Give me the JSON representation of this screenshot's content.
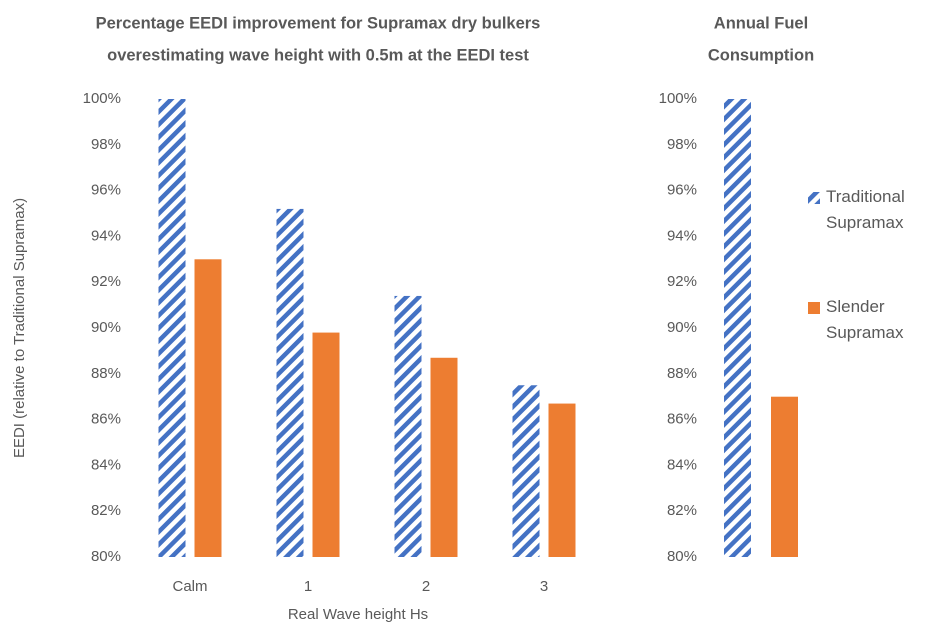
{
  "chart_data": [
    {
      "type": "bar",
      "title": [
        "Percentage EEDI improvement for Supramax dry bulkers",
        "overestimating wave height with 0.5m at the EEDI test"
      ],
      "x_label": "Real Wave height Hs",
      "y_label": "EEDI (relative to Traditional Supramax)",
      "categories": [
        "Calm",
        "1",
        "2",
        "3"
      ],
      "series": [
        {
          "color": "#4472c4",
          "hatch": true,
          "values": [
            100,
            95.2,
            91.4,
            87.5
          ]
        },
        {
          "color": "#ed7d31",
          "hatch": false,
          "values": [
            93.0,
            89.8,
            88.7,
            86.7
          ]
        }
      ],
      "ylim": [
        80,
        100
      ],
      "yticks": [
        {
          "value": 80,
          "label": "80%"
        },
        {
          "value": 82,
          "label": "82%"
        },
        {
          "value": 84,
          "label": "84%"
        },
        {
          "value": 86,
          "label": "86%"
        },
        {
          "value": 88,
          "label": "88%"
        },
        {
          "value": 90,
          "label": "90%"
        },
        {
          "value": 92,
          "label": "92%"
        },
        {
          "value": 94,
          "label": "94%"
        },
        {
          "value": 96,
          "label": "96%"
        },
        {
          "value": 98,
          "label": "98%"
        },
        {
          "value": 100,
          "label": "100%"
        }
      ],
      "grid": false
    },
    {
      "type": "bar",
      "title": [
        "Annual Fuel",
        "Consumption"
      ],
      "categories": [
        null
      ],
      "series": [
        {
          "name": "Traditional Supramax",
          "color": "#4472c4",
          "hatch": true,
          "values": [
            100
          ]
        },
        {
          "name": "Slender Supramax",
          "color": "#ed7d31",
          "hatch": false,
          "values": [
            87.0
          ]
        }
      ],
      "ylim": [
        80,
        100
      ],
      "yticks": [
        {
          "value": 80,
          "label": "80%"
        },
        {
          "value": 82,
          "label": "82%"
        },
        {
          "value": 84,
          "label": "84%"
        },
        {
          "value": 86,
          "label": "86%"
        },
        {
          "value": 88,
          "label": "88%"
        },
        {
          "value": 90,
          "label": "90%"
        },
        {
          "value": 92,
          "label": "92%"
        },
        {
          "value": 94,
          "label": "94%"
        },
        {
          "value": 96,
          "label": "96%"
        },
        {
          "value": 98,
          "label": "98%"
        },
        {
          "value": 100,
          "label": "100%"
        }
      ],
      "legend": "right",
      "grid": false
    }
  ]
}
